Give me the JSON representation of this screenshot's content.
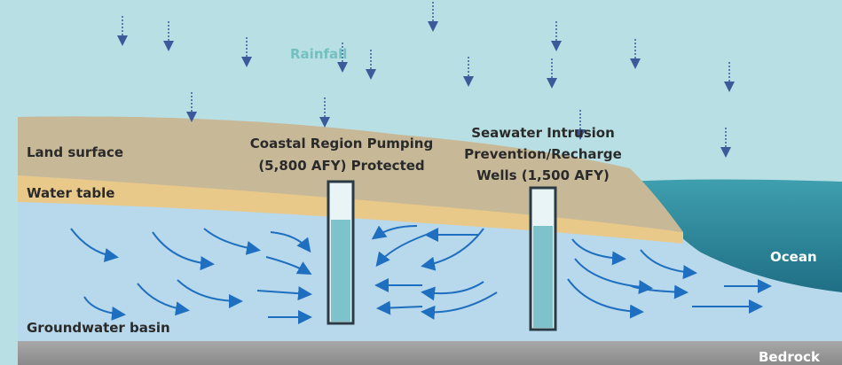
{
  "labels": {
    "rainfall": "Rainfall",
    "land_surface": "Land surface",
    "water_table": "Water table",
    "groundwater_basin": "Groundwater basin",
    "ocean": "Ocean",
    "bedrock": "Bedrock"
  },
  "wells": [
    {
      "lines": [
        "Coastal Region Pumping",
        "(5,800 AFY) Protected"
      ]
    },
    {
      "lines": [
        "Seawater Intrusion",
        "Prevention/Recharge",
        "Wells (1,500 AFY)"
      ]
    }
  ]
}
